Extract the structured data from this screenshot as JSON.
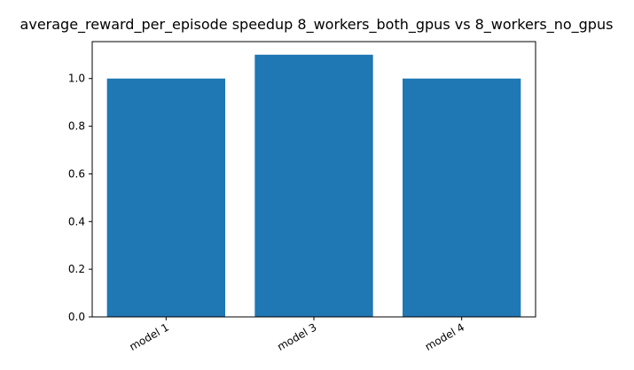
{
  "chart_data": {
    "type": "bar",
    "title": "average_reward_per_episode speedup 8_workers_both_gpus vs 8_workers_no_gpus",
    "xlabel": "",
    "ylabel": "",
    "categories": [
      "model 1",
      "model 3",
      "model 4"
    ],
    "values": [
      1.0,
      1.1,
      1.0
    ],
    "ylim": [
      0,
      1.155
    ],
    "yticks": [
      0.0,
      0.2,
      0.4,
      0.6,
      0.8,
      1.0
    ],
    "ytick_labels": [
      "0.0",
      "0.2",
      "0.4",
      "0.6",
      "0.8",
      "1.0"
    ],
    "bar_color": "#1f77b4",
    "grid": false,
    "legend": "none"
  }
}
